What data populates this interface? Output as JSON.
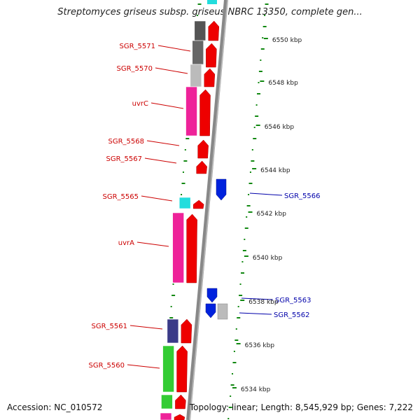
{
  "title": "Streptomyces griseus subsp. griseus NBRC 13350, complete gen...",
  "footer": {
    "accession": "Accession: NC_010572",
    "topology": "Topology: linear; Length: 8,545,929 bp; Genes: 7,222"
  },
  "scale_labels": [
    "6550 kbp",
    "6548 kbp",
    "6546 kbp",
    "6544 kbp",
    "6542 kbp",
    "6540 kbp",
    "6538 kbp",
    "6536 kbp",
    "6534 kbp"
  ],
  "gene_labels_left": [
    "SGR_5571",
    "SGR_5570",
    "uvrC",
    "SGR_5568",
    "SGR_5567",
    "SGR_5565",
    "uvrA",
    "SGR_5561",
    "SGR_5560"
  ],
  "gene_labels_right": [
    "SGR_5566",
    "SGR_5563",
    "SGR_5562"
  ],
  "colors": {
    "forward_cds": "#ee0000",
    "reverse_cds": "#0022dd",
    "label_left": "#cc0000",
    "label_right": "#0000aa",
    "tick": "#118811"
  }
}
